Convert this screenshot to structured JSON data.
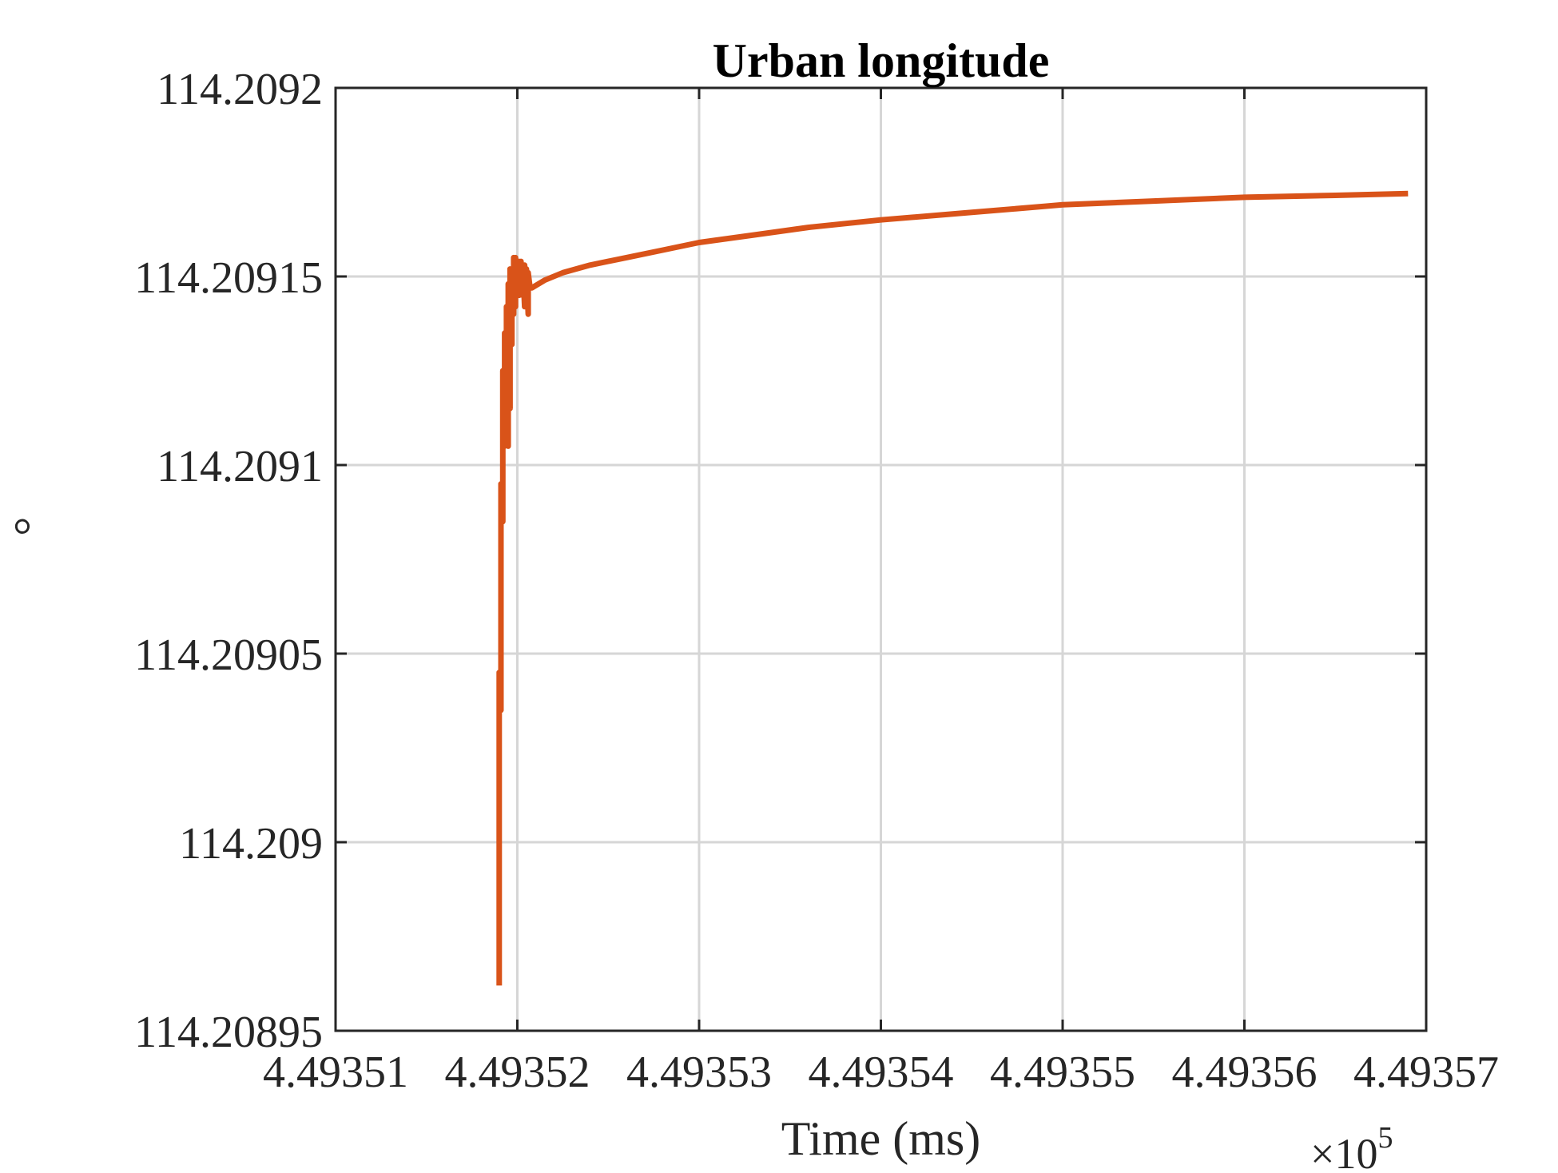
{
  "chart_data": {
    "type": "line",
    "title": "Urban longitude",
    "xlabel": "Time (ms)",
    "ylabel": "°",
    "x_multiplier_label": "×10",
    "x_multiplier_exponent": "5",
    "xlim": [
      449351,
      449357
    ],
    "ylim": [
      114.20895,
      114.2092
    ],
    "x_ticks": [
      449351,
      449352,
      449353,
      449354,
      449355,
      449356,
      449357
    ],
    "x_tick_labels": [
      "4.49351",
      "4.49352",
      "4.49353",
      "4.49354",
      "4.49355",
      "4.49356",
      "4.49357"
    ],
    "y_ticks": [
      114.20895,
      114.209,
      114.20905,
      114.2091,
      114.20915,
      114.2092
    ],
    "y_tick_labels": [
      "114.20895",
      "114.209",
      "114.20905",
      "114.2091",
      "114.20915",
      "114.2092"
    ],
    "grid": true,
    "series": [
      {
        "color": "#D95319",
        "x": [
          449351.9,
          449351.9,
          449351.91,
          449351.91,
          449351.92,
          449351.92,
          449351.93,
          449351.93,
          449351.94,
          449351.94,
          449351.95,
          449351.95,
          449351.96,
          449351.96,
          449351.97,
          449351.97,
          449351.98,
          449351.98,
          449351.99,
          449351.99,
          449352.0,
          449352.0,
          449352.01,
          449352.01,
          449352.02,
          449352.02,
          449352.03,
          449352.03,
          449352.04,
          449352.04,
          449352.05,
          449352.05,
          449352.06,
          449352.06,
          449352.07,
          449352.08,
          449352.15,
          449352.25,
          449352.4,
          449352.6,
          449352.8,
          449353.0,
          449353.3,
          449353.6,
          449354.0,
          449354.5,
          449355.0,
          449355.5,
          449356.0,
          449356.5,
          449356.9
        ],
        "y": [
          114.208962,
          114.209045,
          114.209035,
          114.209095,
          114.209085,
          114.209125,
          114.209105,
          114.209135,
          114.209115,
          114.209142,
          114.209105,
          114.209148,
          114.209115,
          114.209152,
          114.209132,
          114.20915,
          114.20914,
          114.209155,
          114.209142,
          114.209155,
          114.209145,
          114.209154,
          114.209145,
          114.209154,
          114.20915,
          114.209154,
          114.209145,
          114.209153,
          114.209142,
          114.209153,
          114.209145,
          114.209152,
          114.20914,
          114.209151,
          114.209147,
          114.209147,
          114.209149,
          114.209151,
          114.209153,
          114.209155,
          114.209157,
          114.209159,
          114.209161,
          114.209163,
          114.209165,
          114.209167,
          114.209169,
          114.20917,
          114.209171,
          114.2091715,
          114.209172
        ]
      }
    ]
  }
}
